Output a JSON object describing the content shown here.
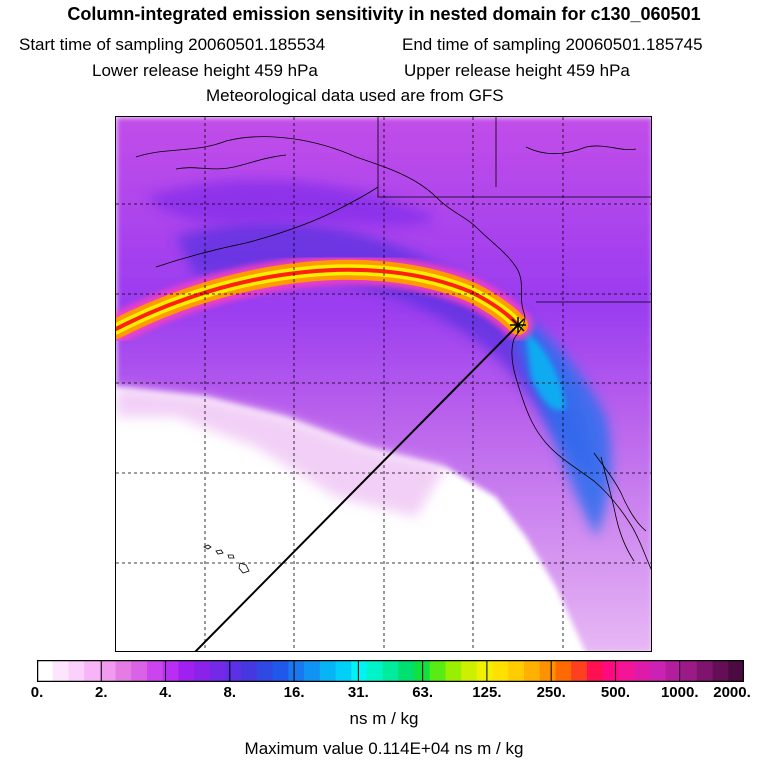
{
  "header": {
    "title": "Column-integrated emission sensitivity in nested domain for c130_060501",
    "start_label": "Start time of sampling 20060501.185534",
    "end_label": "End time of sampling 20060501.185745",
    "lower_label": "Lower release height  459 hPa",
    "upper_label": "Upper release height  459 hPa",
    "met_label": "Meteorological data used are from GFS"
  },
  "colorbar": {
    "tick_labels": [
      "0.",
      "2.",
      "4.",
      "8.",
      "16.",
      "31.",
      "63.",
      "125.",
      "250.",
      "500.",
      "1000.",
      "2000."
    ],
    "colors": [
      "#ffffff",
      "#fde6fd",
      "#fbd0fb",
      "#f7b4f7",
      "#f09af0",
      "#e47ce4",
      "#da62e6",
      "#cc44ee",
      "#b82ef2",
      "#a020f0",
      "#8a22ec",
      "#7428e8",
      "#5c30e4",
      "#4638e0",
      "#3048e4",
      "#2058ec",
      "#1878f0",
      "#1094f4",
      "#08b4f6",
      "#00d0f8",
      "#00f2f2",
      "#00f4c8",
      "#00ec9c",
      "#00e070",
      "#10e040",
      "#58ec14",
      "#98f000",
      "#ccf000",
      "#f0f000",
      "#ffe000",
      "#ffcc00",
      "#ffb000",
      "#ff9000",
      "#ff6a00",
      "#ff4020",
      "#ff1050",
      "#ff0a80",
      "#f41498",
      "#e01aa8",
      "#cc22b4",
      "#b41e9e",
      "#9a1a86",
      "#7e146e",
      "#640e56",
      "#4c0a42"
    ]
  },
  "map": {
    "receptor_marker": "plus-star"
  },
  "footer": {
    "units": "ns m / kg",
    "max_value": "Maximum value  0.114E+04 ns m / kg"
  }
}
